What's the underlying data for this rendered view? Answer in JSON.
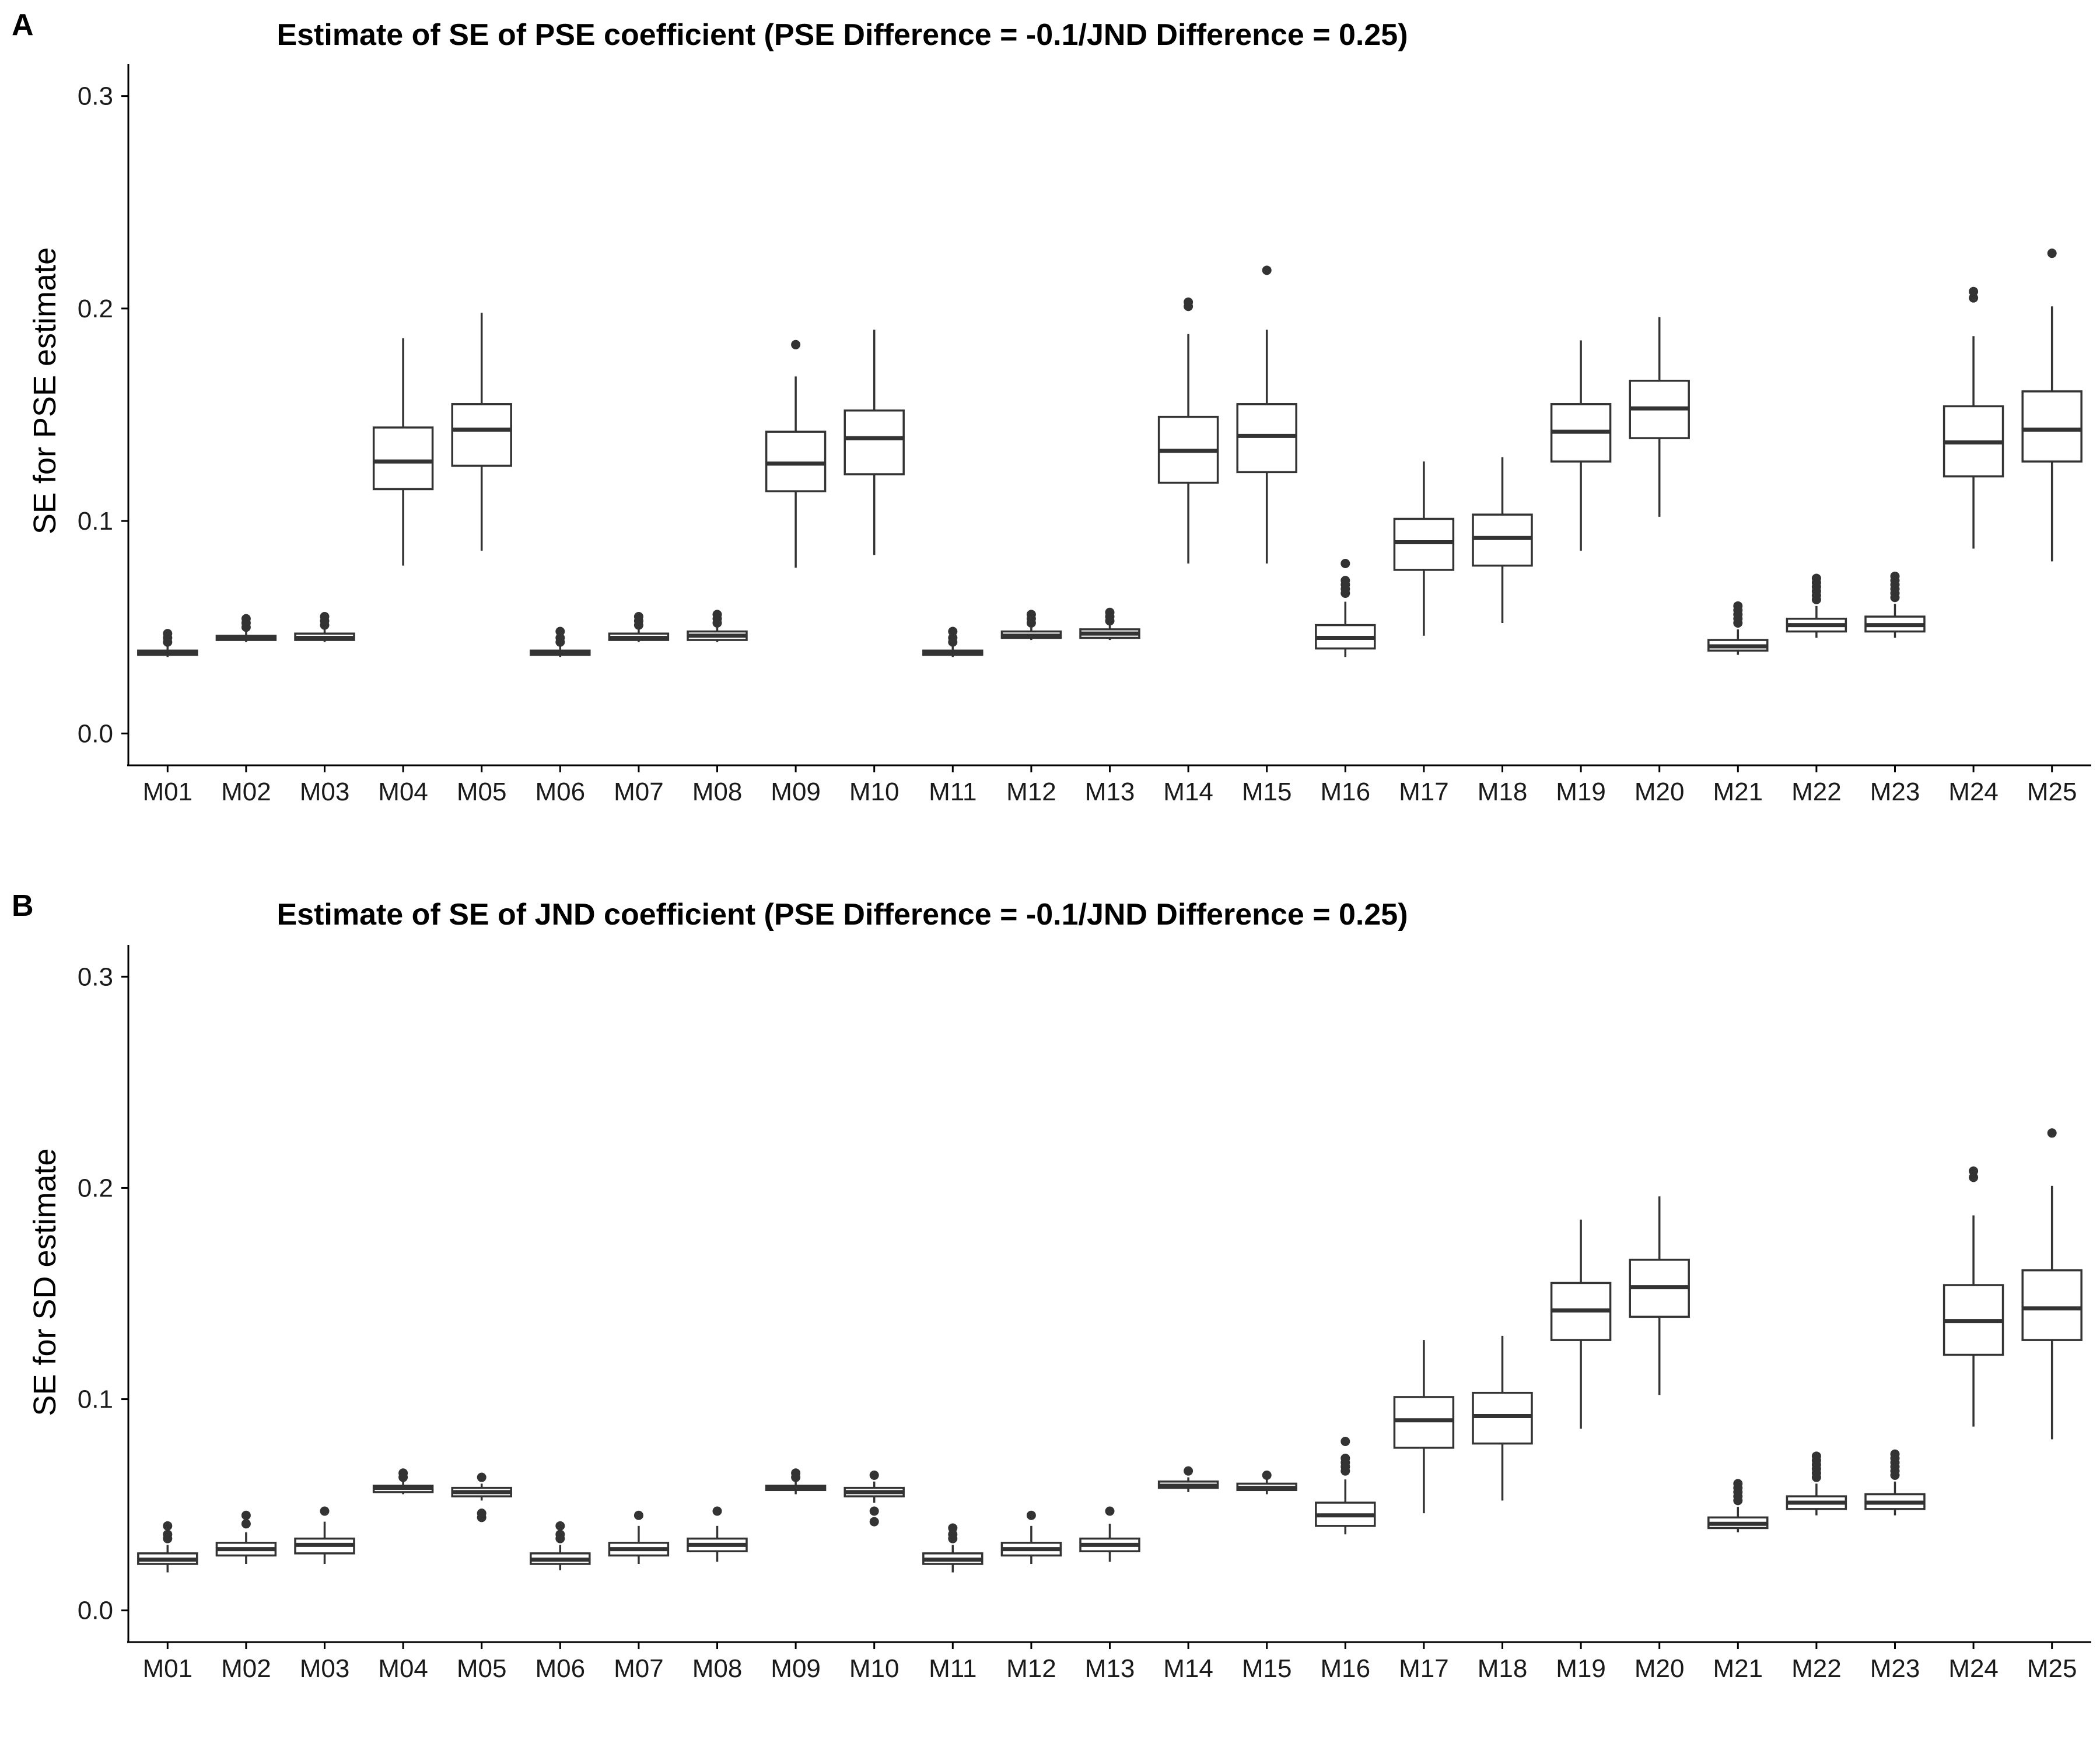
{
  "chart_data": [
    {
      "type": "boxplot",
      "panel_label": "A",
      "title": "Estimate of SE of PSE coefficient (PSE Difference = -0.1/JND Difference = 0.25)",
      "xlabel": "",
      "ylabel": "SE for PSE estimate",
      "ylim": [
        -0.015,
        0.315
      ],
      "yticks": [
        "0.0",
        "0.1",
        "0.2",
        "0.3"
      ],
      "ytick_values": [
        0.0,
        0.1,
        0.2,
        0.3
      ],
      "grid": false,
      "categories": [
        "M01",
        "M02",
        "M03",
        "M04",
        "M05",
        "M06",
        "M07",
        "M08",
        "M09",
        "M10",
        "M11",
        "M12",
        "M13",
        "M14",
        "M15",
        "M16",
        "M17",
        "M18",
        "M19",
        "M20",
        "M21",
        "M22",
        "M23",
        "M24",
        "M25"
      ],
      "boxes": [
        {
          "min": 0.036,
          "q1": 0.037,
          "median": 0.038,
          "q3": 0.039,
          "max": 0.041,
          "outliers": [
            0.043,
            0.045,
            0.047
          ]
        },
        {
          "min": 0.043,
          "q1": 0.044,
          "median": 0.045,
          "q3": 0.046,
          "max": 0.048,
          "outliers": [
            0.05,
            0.052,
            0.054
          ]
        },
        {
          "min": 0.043,
          "q1": 0.044,
          "median": 0.045,
          "q3": 0.047,
          "max": 0.049,
          "outliers": [
            0.051,
            0.053,
            0.055
          ]
        },
        {
          "min": 0.079,
          "q1": 0.115,
          "median": 0.128,
          "q3": 0.144,
          "max": 0.186,
          "outliers": []
        },
        {
          "min": 0.086,
          "q1": 0.126,
          "median": 0.143,
          "q3": 0.155,
          "max": 0.198,
          "outliers": []
        },
        {
          "min": 0.036,
          "q1": 0.037,
          "median": 0.038,
          "q3": 0.039,
          "max": 0.041,
          "outliers": [
            0.043,
            0.045,
            0.048
          ]
        },
        {
          "min": 0.043,
          "q1": 0.044,
          "median": 0.045,
          "q3": 0.047,
          "max": 0.049,
          "outliers": [
            0.051,
            0.053,
            0.055
          ]
        },
        {
          "min": 0.043,
          "q1": 0.044,
          "median": 0.046,
          "q3": 0.048,
          "max": 0.05,
          "outliers": [
            0.052,
            0.054,
            0.056
          ]
        },
        {
          "min": 0.078,
          "q1": 0.114,
          "median": 0.127,
          "q3": 0.142,
          "max": 0.168,
          "outliers": [
            0.183
          ]
        },
        {
          "min": 0.084,
          "q1": 0.122,
          "median": 0.139,
          "q3": 0.152,
          "max": 0.19,
          "outliers": []
        },
        {
          "min": 0.036,
          "q1": 0.037,
          "median": 0.038,
          "q3": 0.039,
          "max": 0.041,
          "outliers": [
            0.043,
            0.045,
            0.048
          ]
        },
        {
          "min": 0.044,
          "q1": 0.045,
          "median": 0.046,
          "q3": 0.048,
          "max": 0.05,
          "outliers": [
            0.052,
            0.054,
            0.056
          ]
        },
        {
          "min": 0.044,
          "q1": 0.045,
          "median": 0.047,
          "q3": 0.049,
          "max": 0.051,
          "outliers": [
            0.053,
            0.055,
            0.057
          ]
        },
        {
          "min": 0.08,
          "q1": 0.118,
          "median": 0.133,
          "q3": 0.149,
          "max": 0.188,
          "outliers": [
            0.201,
            0.203
          ]
        },
        {
          "min": 0.08,
          "q1": 0.123,
          "median": 0.14,
          "q3": 0.155,
          "max": 0.19,
          "outliers": [
            0.218
          ]
        },
        {
          "min": 0.036,
          "q1": 0.04,
          "median": 0.045,
          "q3": 0.051,
          "max": 0.062,
          "outliers": [
            0.066,
            0.068,
            0.07,
            0.072,
            0.08
          ]
        },
        {
          "min": 0.046,
          "q1": 0.077,
          "median": 0.09,
          "q3": 0.101,
          "max": 0.128,
          "outliers": []
        },
        {
          "min": 0.052,
          "q1": 0.079,
          "median": 0.092,
          "q3": 0.103,
          "max": 0.13,
          "outliers": []
        },
        {
          "min": 0.086,
          "q1": 0.128,
          "median": 0.142,
          "q3": 0.155,
          "max": 0.185,
          "outliers": []
        },
        {
          "min": 0.102,
          "q1": 0.139,
          "median": 0.153,
          "q3": 0.166,
          "max": 0.196,
          "outliers": []
        },
        {
          "min": 0.037,
          "q1": 0.039,
          "median": 0.041,
          "q3": 0.044,
          "max": 0.049,
          "outliers": [
            0.052,
            0.054,
            0.056,
            0.058,
            0.06
          ]
        },
        {
          "min": 0.045,
          "q1": 0.048,
          "median": 0.051,
          "q3": 0.054,
          "max": 0.06,
          "outliers": [
            0.063,
            0.065,
            0.067,
            0.069,
            0.071,
            0.073
          ]
        },
        {
          "min": 0.045,
          "q1": 0.048,
          "median": 0.051,
          "q3": 0.055,
          "max": 0.061,
          "outliers": [
            0.064,
            0.066,
            0.068,
            0.07,
            0.072,
            0.074
          ]
        },
        {
          "min": 0.087,
          "q1": 0.121,
          "median": 0.137,
          "q3": 0.154,
          "max": 0.187,
          "outliers": [
            0.205,
            0.208
          ]
        },
        {
          "min": 0.081,
          "q1": 0.128,
          "median": 0.143,
          "q3": 0.161,
          "max": 0.201,
          "outliers": [
            0.226
          ]
        }
      ]
    },
    {
      "type": "boxplot",
      "panel_label": "B",
      "title": "Estimate of SE of JND coefficient (PSE Difference = -0.1/JND Difference = 0.25)",
      "xlabel": "",
      "ylabel": "SE for SD estimate",
      "ylim": [
        -0.015,
        0.315
      ],
      "yticks": [
        "0.0",
        "0.1",
        "0.2",
        "0.3"
      ],
      "ytick_values": [
        0.0,
        0.1,
        0.2,
        0.3
      ],
      "grid": false,
      "categories": [
        "M01",
        "M02",
        "M03",
        "M04",
        "M05",
        "M06",
        "M07",
        "M08",
        "M09",
        "M10",
        "M11",
        "M12",
        "M13",
        "M14",
        "M15",
        "M16",
        "M17",
        "M18",
        "M19",
        "M20",
        "M21",
        "M22",
        "M23",
        "M24",
        "M25"
      ],
      "boxes": [
        {
          "min": 0.018,
          "q1": 0.022,
          "median": 0.024,
          "q3": 0.027,
          "max": 0.031,
          "outliers": [
            0.034,
            0.036,
            0.04
          ]
        },
        {
          "min": 0.022,
          "q1": 0.026,
          "median": 0.029,
          "q3": 0.032,
          "max": 0.037,
          "outliers": [
            0.041,
            0.045
          ]
        },
        {
          "min": 0.022,
          "q1": 0.027,
          "median": 0.031,
          "q3": 0.034,
          "max": 0.042,
          "outliers": [
            0.047
          ]
        },
        {
          "min": 0.055,
          "q1": 0.056,
          "median": 0.058,
          "q3": 0.059,
          "max": 0.061,
          "outliers": [
            0.063,
            0.065
          ]
        },
        {
          "min": 0.052,
          "q1": 0.054,
          "median": 0.056,
          "q3": 0.058,
          "max": 0.06,
          "outliers": [
            0.044,
            0.046,
            0.063
          ]
        },
        {
          "min": 0.019,
          "q1": 0.022,
          "median": 0.024,
          "q3": 0.027,
          "max": 0.031,
          "outliers": [
            0.034,
            0.036,
            0.04
          ]
        },
        {
          "min": 0.022,
          "q1": 0.026,
          "median": 0.029,
          "q3": 0.032,
          "max": 0.04,
          "outliers": [
            0.045
          ]
        },
        {
          "min": 0.023,
          "q1": 0.028,
          "median": 0.031,
          "q3": 0.034,
          "max": 0.04,
          "outliers": [
            0.047
          ]
        },
        {
          "min": 0.055,
          "q1": 0.057,
          "median": 0.058,
          "q3": 0.059,
          "max": 0.061,
          "outliers": [
            0.063,
            0.065
          ]
        },
        {
          "min": 0.051,
          "q1": 0.054,
          "median": 0.056,
          "q3": 0.058,
          "max": 0.061,
          "outliers": [
            0.042,
            0.047,
            0.064
          ]
        },
        {
          "min": 0.018,
          "q1": 0.022,
          "median": 0.024,
          "q3": 0.027,
          "max": 0.031,
          "outliers": [
            0.034,
            0.036,
            0.039
          ]
        },
        {
          "min": 0.022,
          "q1": 0.026,
          "median": 0.029,
          "q3": 0.032,
          "max": 0.04,
          "outliers": [
            0.045
          ]
        },
        {
          "min": 0.023,
          "q1": 0.028,
          "median": 0.031,
          "q3": 0.034,
          "max": 0.041,
          "outliers": [
            0.047
          ]
        },
        {
          "min": 0.056,
          "q1": 0.058,
          "median": 0.059,
          "q3": 0.061,
          "max": 0.063,
          "outliers": [
            0.066
          ]
        },
        {
          "min": 0.055,
          "q1": 0.057,
          "median": 0.058,
          "q3": 0.06,
          "max": 0.062,
          "outliers": [
            0.064
          ]
        },
        {
          "min": 0.036,
          "q1": 0.04,
          "median": 0.045,
          "q3": 0.051,
          "max": 0.062,
          "outliers": [
            0.066,
            0.068,
            0.07,
            0.072,
            0.08
          ]
        },
        {
          "min": 0.046,
          "q1": 0.077,
          "median": 0.09,
          "q3": 0.101,
          "max": 0.128,
          "outliers": []
        },
        {
          "min": 0.052,
          "q1": 0.079,
          "median": 0.092,
          "q3": 0.103,
          "max": 0.13,
          "outliers": []
        },
        {
          "min": 0.086,
          "q1": 0.128,
          "median": 0.142,
          "q3": 0.155,
          "max": 0.185,
          "outliers": []
        },
        {
          "min": 0.102,
          "q1": 0.139,
          "median": 0.153,
          "q3": 0.166,
          "max": 0.196,
          "outliers": []
        },
        {
          "min": 0.037,
          "q1": 0.039,
          "median": 0.041,
          "q3": 0.044,
          "max": 0.049,
          "outliers": [
            0.052,
            0.054,
            0.056,
            0.058,
            0.06
          ]
        },
        {
          "min": 0.045,
          "q1": 0.048,
          "median": 0.051,
          "q3": 0.054,
          "max": 0.06,
          "outliers": [
            0.063,
            0.065,
            0.067,
            0.069,
            0.071,
            0.073
          ]
        },
        {
          "min": 0.045,
          "q1": 0.048,
          "median": 0.051,
          "q3": 0.055,
          "max": 0.061,
          "outliers": [
            0.064,
            0.066,
            0.068,
            0.07,
            0.072,
            0.074
          ]
        },
        {
          "min": 0.087,
          "q1": 0.121,
          "median": 0.137,
          "q3": 0.154,
          "max": 0.187,
          "outliers": [
            0.205,
            0.208
          ]
        },
        {
          "min": 0.081,
          "q1": 0.128,
          "median": 0.143,
          "q3": 0.161,
          "max": 0.201,
          "outliers": [
            0.226
          ]
        }
      ]
    }
  ]
}
